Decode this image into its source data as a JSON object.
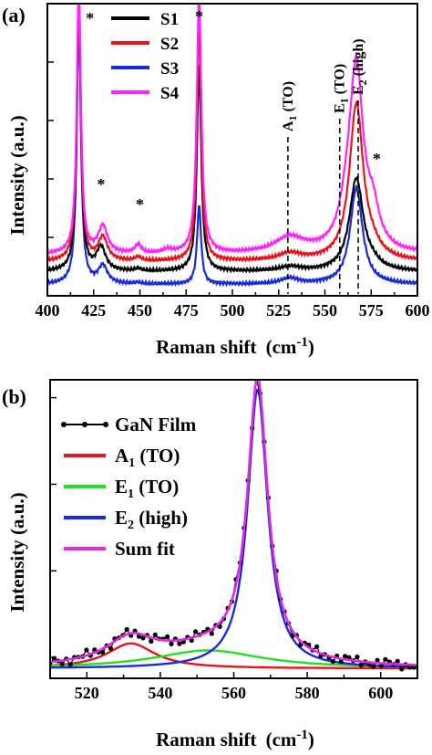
{
  "chart_data": [
    {
      "panel_label": "(a)",
      "type": "line",
      "xlabel": "Raman shift",
      "xlabel_unit": "(cm",
      "xlabel_sup": "-1",
      "xlabel_close": ")",
      "ylabel": "Intensity (a.u.)",
      "xlim": [
        400,
        600
      ],
      "x_ticks": [
        400,
        425,
        450,
        475,
        500,
        525,
        550,
        575,
        600
      ],
      "y_ticks_count": 4,
      "legend_position": "top-left",
      "series": [
        {
          "name": "S1",
          "color": "#000000",
          "baseline": 0.34,
          "peaks": [
            [
              417,
              3.8,
              1.3
            ],
            [
              429,
              0.33,
              3
            ],
            [
              449,
              0.03,
              2
            ],
            [
              482,
              2.9,
              1.4
            ],
            [
              531,
              0.06,
              7
            ],
            [
              567,
              1.3,
              4.5
            ],
            [
              576,
              0.06,
              5
            ]
          ]
        },
        {
          "name": "S2",
          "color": "#e8141c",
          "baseline": 0.48,
          "peaks": [
            [
              417,
              3.8,
              1.3
            ],
            [
              430,
              0.33,
              3
            ],
            [
              449,
              0.05,
              2
            ],
            [
              482,
              3.3,
              1.4
            ],
            [
              531,
              0.1,
              8
            ],
            [
              567,
              2.2,
              4.5
            ],
            [
              576,
              0.1,
              5
            ]
          ]
        },
        {
          "name": "S3",
          "color": "#1a2bdc",
          "baseline": 0.16,
          "peaks": [
            [
              417,
              3.8,
              1.3
            ],
            [
              430,
              0.25,
              3
            ],
            [
              449,
              0.02,
              2
            ],
            [
              482,
              1.1,
              1.3
            ],
            [
              531,
              0.08,
              6
            ],
            [
              567,
              1.35,
              4
            ]
          ]
        },
        {
          "name": "S4",
          "color": "#ff22ff",
          "baseline": 0.58,
          "peaks": [
            [
              417,
              3.8,
              1.3
            ],
            [
              430,
              0.38,
              3
            ],
            [
              449,
              0.12,
              2
            ],
            [
              465,
              0.05,
              3
            ],
            [
              482,
              3.6,
              1.5
            ],
            [
              531,
              0.22,
              10
            ],
            [
              562,
              0.35,
              5
            ],
            [
              567,
              2.5,
              4.5
            ],
            [
              576,
              0.45,
              4
            ]
          ]
        }
      ],
      "annotations": [
        {
          "text": "*",
          "x": 423
        },
        {
          "text": "*",
          "x": 429
        },
        {
          "text": "*",
          "x": 450
        },
        {
          "text": "*",
          "x": 482
        },
        {
          "text": "*",
          "x": 578
        }
      ],
      "mode_markers": [
        {
          "x": 530,
          "main": "A",
          "sub": "1",
          "rest": " (TO)"
        },
        {
          "x": 558,
          "main": "E",
          "sub": "1",
          "rest": " (TO)"
        },
        {
          "x": 568,
          "main": "E",
          "sub": "2",
          "rest": " (high)"
        }
      ]
    },
    {
      "panel_label": "(b)",
      "type": "line",
      "xlabel": "Raman shift",
      "xlabel_unit": "(cm",
      "xlabel_sup": "-1",
      "xlabel_close": ")",
      "ylabel": "Intensity (a.u.)",
      "xlim": [
        510,
        610
      ],
      "x_ticks": [
        520,
        540,
        560,
        580,
        600
      ],
      "y_ticks_count": 4,
      "legend_position": "top-left",
      "series": [
        {
          "name": "GaN Film",
          "main": "GaN Film",
          "sub": "",
          "rest": "",
          "color": "#000000",
          "style": "dots"
        },
        {
          "name": "A1 (TO)",
          "main": "A",
          "sub": "1",
          "rest": " (TO)",
          "color": "#e8141c",
          "center": 532,
          "amp": 0.09,
          "width": 8
        },
        {
          "name": "E1 (TO)",
          "main": "E",
          "sub": "1",
          "rest": " (TO)",
          "color": "#22e022",
          "center": 553,
          "amp": 0.065,
          "width": 18
        },
        {
          "name": "E2 (high)",
          "main": "E",
          "sub": "2",
          "rest": " (high)",
          "color": "#1a2bdc",
          "center": 566.5,
          "amp": 1.0,
          "width": 3.3
        },
        {
          "name": "Sum fit",
          "main": "Sum fit",
          "sub": "",
          "rest": "",
          "color": "#e02ae0",
          "style": "sum"
        }
      ]
    }
  ]
}
